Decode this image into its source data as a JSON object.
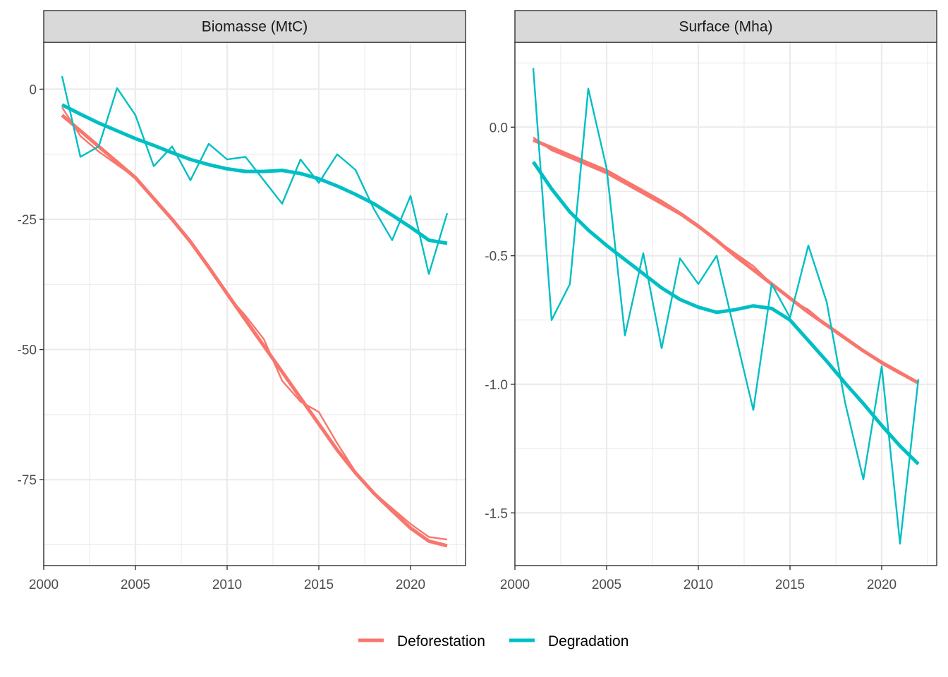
{
  "colors": {
    "deforestation": "#F8766D",
    "degradation": "#00BFC4",
    "strip_fill": "#D9D9D9",
    "grid": "#EBEBEB",
    "border": "#333333"
  },
  "legend": {
    "position": "bottom",
    "items": [
      {
        "key": "deforestation",
        "label": "Deforestation"
      },
      {
        "key": "degradation",
        "label": "Degradation"
      }
    ]
  },
  "chart_data": [
    {
      "type": "line",
      "title": "Biomasse (MtC)",
      "x": [
        2001,
        2002,
        2003,
        2004,
        2005,
        2006,
        2007,
        2008,
        2009,
        2010,
        2011,
        2012,
        2013,
        2014,
        2015,
        2016,
        2017,
        2018,
        2019,
        2020,
        2021,
        2022
      ],
      "xlim": [
        2000,
        2023
      ],
      "ylim": [
        -91.5,
        9
      ],
      "xticks": [
        2000,
        2005,
        2010,
        2015,
        2020
      ],
      "yticks": [
        0,
        -25,
        -50,
        -75
      ],
      "ytick_labels": [
        "0",
        "-25",
        "-50",
        "-75"
      ],
      "grid": true,
      "series": [
        {
          "name": "Deforestation",
          "key": "deforestation",
          "style": "raw",
          "values": [
            -3.5,
            -9,
            -12,
            -14.5,
            -17,
            -21,
            -25,
            -29.5,
            -34,
            -39.5,
            -43.5,
            -48,
            -56,
            -60,
            -62,
            -68,
            -73.5,
            -77.5,
            -80.5,
            -83.5,
            -86,
            -86.5
          ]
        },
        {
          "name": "Deforestation",
          "key": "deforestation",
          "style": "smooth",
          "values": [
            -5,
            -8,
            -11,
            -14,
            -17,
            -21,
            -25,
            -29.3,
            -34.2,
            -39.3,
            -44.3,
            -49.3,
            -54.3,
            -59.3,
            -64.3,
            -69.3,
            -73.7,
            -77.6,
            -81,
            -84.3,
            -86.8,
            -87.7
          ]
        },
        {
          "name": "Degradation",
          "key": "degradation",
          "style": "raw",
          "values": [
            2.5,
            -13,
            -11,
            0.2,
            -5,
            -14.8,
            -11,
            -17.5,
            -10.5,
            -13.5,
            -13,
            -17.5,
            -22,
            -13.5,
            -18,
            -12.5,
            -15.5,
            -23,
            -29,
            -20.5,
            -35.5,
            -23.8
          ]
        },
        {
          "name": "Degradation",
          "key": "degradation",
          "style": "smooth",
          "values": [
            -3,
            -4.8,
            -6.5,
            -8,
            -9.5,
            -10.8,
            -12.2,
            -13.5,
            -14.5,
            -15.3,
            -15.8,
            -15.8,
            -15.6,
            -16.2,
            -17.2,
            -18.6,
            -20.2,
            -22,
            -24.2,
            -26.5,
            -29,
            -29.6
          ]
        }
      ]
    },
    {
      "type": "line",
      "title": "Surface (Mha)",
      "x": [
        2001,
        2002,
        2003,
        2004,
        2005,
        2006,
        2007,
        2008,
        2009,
        2010,
        2011,
        2012,
        2013,
        2014,
        2015,
        2016,
        2017,
        2018,
        2019,
        2020,
        2021,
        2022
      ],
      "xlim": [
        2000,
        2023
      ],
      "ylim": [
        -1.705,
        0.33
      ],
      "xticks": [
        2000,
        2005,
        2010,
        2015,
        2020
      ],
      "yticks": [
        0.0,
        -0.5,
        -1.0,
        -1.5
      ],
      "ytick_labels": [
        "0.0",
        "-0.5",
        "-1.0",
        "-1.5"
      ],
      "grid": true,
      "series": [
        {
          "name": "Deforestation",
          "key": "deforestation",
          "style": "raw",
          "values": [
            -0.04,
            -0.09,
            -0.12,
            -0.15,
            -0.18,
            -0.22,
            -0.26,
            -0.3,
            -0.34,
            -0.39,
            -0.44,
            -0.49,
            -0.54,
            -0.61,
            -0.67,
            -0.71,
            -0.77,
            -0.82,
            -0.87,
            -0.92,
            -0.96,
            -0.99
          ]
        },
        {
          "name": "Deforestation",
          "key": "deforestation",
          "style": "smooth",
          "values": [
            -0.05,
            -0.08,
            -0.11,
            -0.14,
            -0.17,
            -0.21,
            -0.25,
            -0.29,
            -0.335,
            -0.385,
            -0.44,
            -0.5,
            -0.555,
            -0.61,
            -0.665,
            -0.72,
            -0.77,
            -0.82,
            -0.87,
            -0.915,
            -0.955,
            -0.995
          ]
        },
        {
          "name": "Degradation",
          "key": "degradation",
          "style": "raw",
          "values": [
            0.23,
            -0.75,
            -0.61,
            0.15,
            -0.16,
            -0.81,
            -0.49,
            -0.86,
            -0.51,
            -0.61,
            -0.5,
            -0.8,
            -1.1,
            -0.61,
            -0.74,
            -0.46,
            -0.68,
            -1.07,
            -1.37,
            -0.93,
            -1.62,
            -0.98
          ]
        },
        {
          "name": "Degradation",
          "key": "degradation",
          "style": "smooth",
          "values": [
            -0.135,
            -0.24,
            -0.33,
            -0.4,
            -0.46,
            -0.515,
            -0.57,
            -0.625,
            -0.67,
            -0.7,
            -0.72,
            -0.71,
            -0.695,
            -0.705,
            -0.75,
            -0.83,
            -0.91,
            -0.995,
            -1.075,
            -1.16,
            -1.24,
            -1.31
          ]
        }
      ]
    }
  ]
}
